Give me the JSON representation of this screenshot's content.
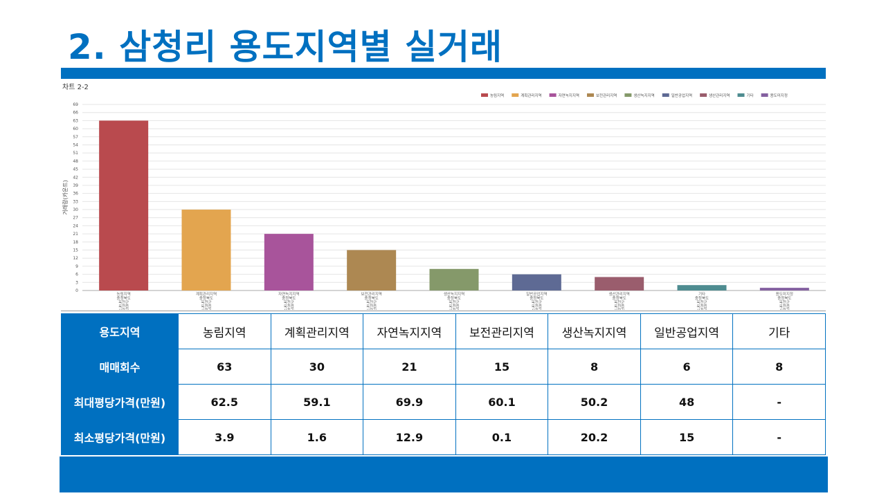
{
  "slide": {
    "title": "2. 삼청리 용도지역별 실거래",
    "chart_caption": "차트 2-2"
  },
  "chart_data": {
    "type": "bar",
    "ylabel": "거래량(카운트)",
    "ylim": [
      0,
      69
    ],
    "yticks": [
      0,
      3,
      6,
      9,
      12,
      15,
      18,
      21,
      24,
      27,
      30,
      33,
      36,
      39,
      42,
      45,
      48,
      51,
      54,
      57,
      60,
      63,
      66,
      69
    ],
    "grid": true,
    "legend_position": "top-right",
    "categories": [
      "농림지역",
      "계획관리지역",
      "자연녹지지역",
      "보전관리지역",
      "생산녹지지역",
      "일반공업지역",
      "생산관리지역",
      "기타",
      "용도미지정"
    ],
    "category_sublabels": [
      "충청북도",
      "옥천군",
      "옥천읍",
      "삼청리"
    ],
    "values": [
      63,
      30,
      21,
      15,
      8,
      6,
      5,
      2,
      1
    ],
    "colors": [
      "#B94A4E",
      "#E3A54F",
      "#A8549B",
      "#AD8852",
      "#85996A",
      "#5E6A94",
      "#9A5D6D",
      "#4E8C90",
      "#8460A0"
    ],
    "legend": [
      {
        "name": "농림지역",
        "color": "#B94A4E"
      },
      {
        "name": "계획관리지역",
        "color": "#E3A54F"
      },
      {
        "name": "자연녹지지역",
        "color": "#A8549B"
      },
      {
        "name": "보전관리지역",
        "color": "#AD8852"
      },
      {
        "name": "생산녹지지역",
        "color": "#85996A"
      },
      {
        "name": "일반공업지역",
        "color": "#5E6A94"
      },
      {
        "name": "생산관리지역",
        "color": "#9A5D6D"
      },
      {
        "name": "기타",
        "color": "#4E8C90"
      },
      {
        "name": "용도미지정",
        "color": "#8460A0"
      }
    ]
  },
  "table": {
    "row_headers": [
      "용도지역",
      "매매회수",
      "최대평당가격(만원)",
      "최소평당가격(만원)"
    ],
    "columns": [
      "농림지역",
      "계획관리지역",
      "자연녹지지역",
      "보전관리지역",
      "생산녹지지역",
      "일반공업지역",
      "기타"
    ],
    "rows": [
      [
        "63",
        "30",
        "21",
        "15",
        "8",
        "6",
        "8"
      ],
      [
        "62.5",
        "59.1",
        "69.9",
        "60.1",
        "50.2",
        "48",
        "-"
      ],
      [
        "3.9",
        "1.6",
        "12.9",
        "0.1",
        "20.2",
        "15",
        "-"
      ]
    ]
  },
  "colors": {
    "brand_blue": "#0070C0"
  }
}
